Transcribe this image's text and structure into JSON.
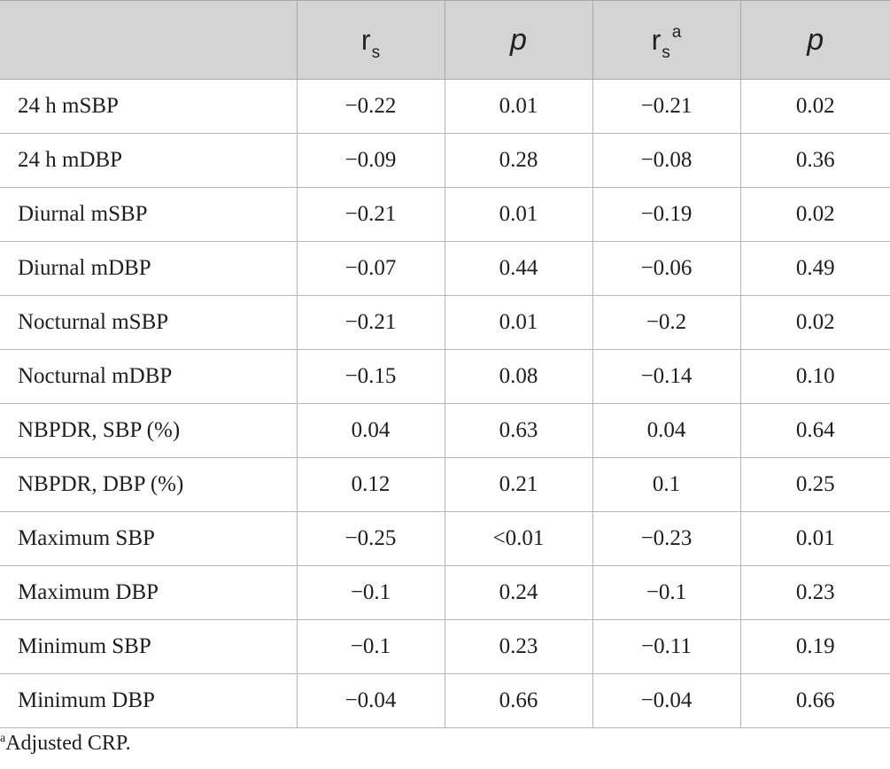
{
  "table": {
    "headers": {
      "col0": "",
      "col1_symbol": "r",
      "col1_sub": "s",
      "col2": "p",
      "col3_symbol": "r",
      "col3_sub": "s",
      "col3_sup": "a",
      "col4": "p"
    },
    "rows": [
      {
        "label": "24 h mSBP",
        "rs": "−0.22",
        "p": "0.01",
        "rs_adj": "−0.21",
        "p_adj": "0.02"
      },
      {
        "label": "24 h mDBP",
        "rs": "−0.09",
        "p": "0.28",
        "rs_adj": "−0.08",
        "p_adj": "0.36"
      },
      {
        "label": "Diurnal mSBP",
        "rs": "−0.21",
        "p": "0.01",
        "rs_adj": "−0.19",
        "p_adj": "0.02"
      },
      {
        "label": "Diurnal mDBP",
        "rs": "−0.07",
        "p": "0.44",
        "rs_adj": "−0.06",
        "p_adj": "0.49"
      },
      {
        "label": "Nocturnal mSBP",
        "rs": "−0.21",
        "p": "0.01",
        "rs_adj": "−0.2",
        "p_adj": "0.02"
      },
      {
        "label": "Nocturnal mDBP",
        "rs": "−0.15",
        "p": "0.08",
        "rs_adj": "−0.14",
        "p_adj": "0.10"
      },
      {
        "label": "NBPDR, SBP (%)",
        "rs": "0.04",
        "p": "0.63",
        "rs_adj": "0.04",
        "p_adj": "0.64"
      },
      {
        "label": "NBPDR, DBP (%)",
        "rs": "0.12",
        "p": "0.21",
        "rs_adj": "0.1",
        "p_adj": "0.25"
      },
      {
        "label": "Maximum SBP",
        "rs": "−0.25",
        "p": "<0.01",
        "rs_adj": "−0.23",
        "p_adj": "0.01"
      },
      {
        "label": "Maximum DBP",
        "rs": "−0.1",
        "p": "0.24",
        "rs_adj": "−0.1",
        "p_adj": "0.23"
      },
      {
        "label": "Minimum SBP",
        "rs": "−0.1",
        "p": "0.23",
        "rs_adj": "−0.11",
        "p_adj": "0.19"
      },
      {
        "label": "Minimum DBP",
        "rs": "−0.04",
        "p": "0.66",
        "rs_adj": "−0.04",
        "p_adj": "0.66"
      }
    ]
  },
  "footnote": {
    "marker": "a",
    "text": "Adjusted CRP."
  },
  "colors": {
    "header_bg": "#d4d4d4",
    "border": "#b5b5b5"
  }
}
